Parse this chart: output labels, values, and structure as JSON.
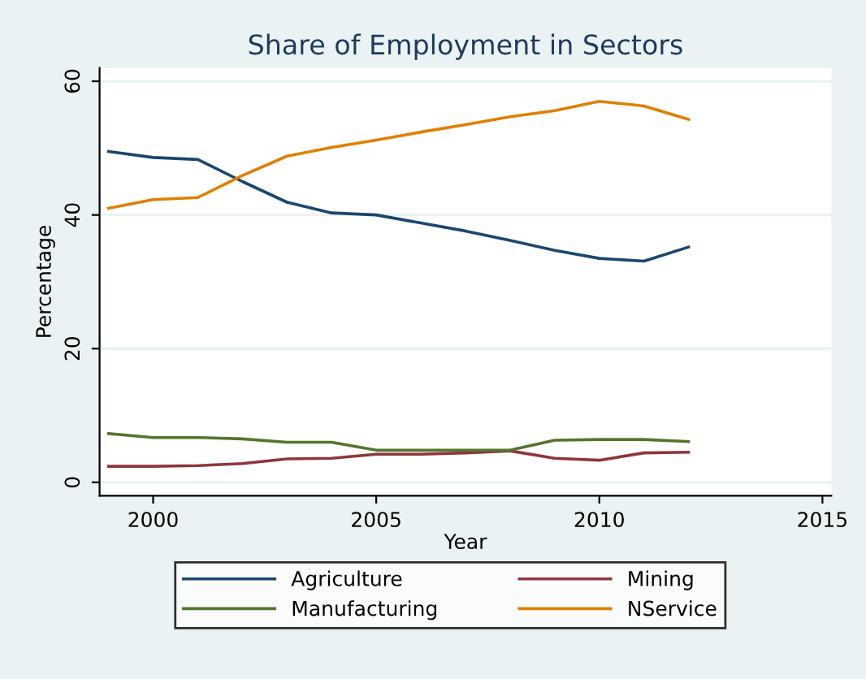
{
  "chart_data": {
    "type": "line",
    "title": "Share of Employment in Sectors",
    "xlabel": "Year",
    "ylabel": "Percentage",
    "x": [
      1999,
      2000,
      2001,
      2002,
      2003,
      2004,
      2005,
      2006,
      2007,
      2008,
      2009,
      2010,
      2011,
      2012
    ],
    "series": [
      {
        "name": "Agriculture",
        "color": "#1a476f",
        "values": [
          49.5,
          48.6,
          48.3,
          45.0,
          41.9,
          40.3,
          40.0,
          38.8,
          37.6,
          36.2,
          34.7,
          33.5,
          33.1,
          35.2
        ]
      },
      {
        "name": "Mining",
        "color": "#90353b",
        "values": [
          2.4,
          2.4,
          2.5,
          2.8,
          3.5,
          3.6,
          4.2,
          4.2,
          4.4,
          4.7,
          3.6,
          3.3,
          4.4,
          4.5
        ]
      },
      {
        "name": "Manufacturing",
        "color": "#55752f",
        "values": [
          7.3,
          6.7,
          6.7,
          6.5,
          6.0,
          6.0,
          4.8,
          4.8,
          4.8,
          4.8,
          6.3,
          6.4,
          6.4,
          6.1
        ]
      },
      {
        "name": "NService",
        "color": "#e37e00",
        "values": [
          41.0,
          42.3,
          42.6,
          45.9,
          48.8,
          50.1,
          51.2,
          52.4,
          53.5,
          54.7,
          55.6,
          57.0,
          56.3,
          54.3
        ]
      }
    ],
    "xlim": [
      1998.8,
      2015.2
    ],
    "xticks": [
      2000,
      2005,
      2010,
      2015
    ],
    "ylim": [
      -2,
      62
    ],
    "yticks": [
      0,
      20,
      40,
      60
    ],
    "grid": "y",
    "legend": "bottom",
    "marker": "none",
    "line_style": "solid"
  }
}
